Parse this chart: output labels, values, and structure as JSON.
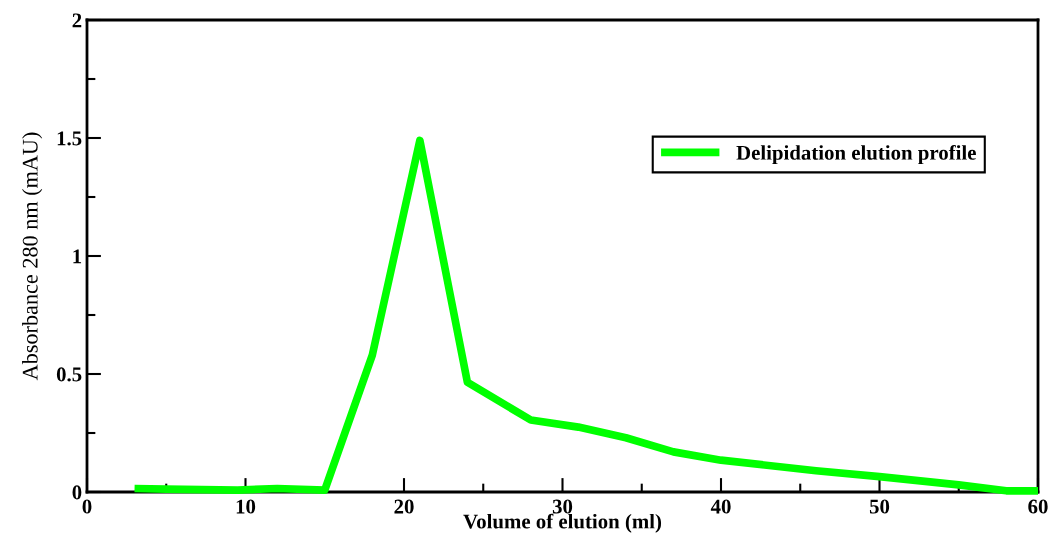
{
  "chart_data": {
    "type": "line",
    "xlabel": "Volume of elution (ml)",
    "ylabel": "Absorbance 280 nm (mAU)",
    "series": [
      {
        "name": "Delipidation elution profile",
        "color": "#00ff00",
        "x": [
          3,
          5,
          9.5,
          12,
          15,
          18,
          21,
          24,
          28,
          31,
          34,
          37,
          40,
          46,
          50,
          55,
          58,
          60
        ],
        "values": [
          0.015,
          0.012,
          0.008,
          0.015,
          0.008,
          0.58,
          1.49,
          0.465,
          0.305,
          0.275,
          0.23,
          0.17,
          0.135,
          0.09,
          0.065,
          0.03,
          0.005,
          0.005
        ]
      }
    ],
    "xlim": [
      0,
      60
    ],
    "ylim": [
      0,
      2
    ],
    "xticks": [
      0,
      {
        "value": 5,
        "label": null
      },
      10,
      {
        "value": 15,
        "label": null
      },
      20,
      {
        "value": 25,
        "label": null
      },
      30,
      {
        "value": 35,
        "label": null
      },
      40,
      {
        "value": 45,
        "label": null
      },
      50,
      {
        "value": 55,
        "label": null
      },
      60
    ],
    "yticks": [
      0,
      {
        "value": 0.25,
        "label": null
      },
      0.5,
      {
        "value": 0.75,
        "label": null
      },
      1,
      {
        "value": 1.25,
        "label": null
      },
      1.5,
      {
        "value": 1.75,
        "label": null
      },
      2
    ],
    "grid": false,
    "legend": "top right",
    "marker": "none",
    "line_style": "solid"
  }
}
